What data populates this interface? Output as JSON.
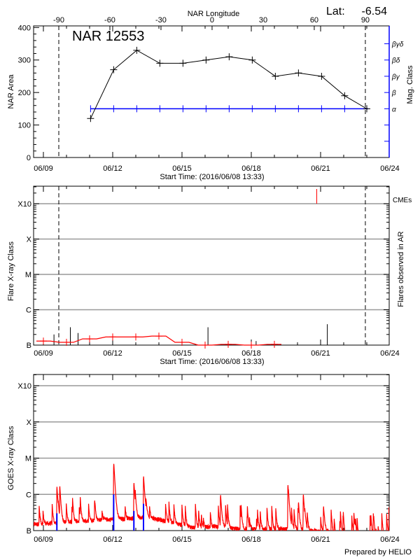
{
  "header": {
    "lat_label": "Lat:",
    "lat_value": "-6.54"
  },
  "footer": {
    "credit": "Prepared by HELIO"
  },
  "colors": {
    "area": "#000000",
    "mag_class": "#0000ff",
    "flare": "#ff0000",
    "cme": "#ff0000",
    "goes": "#ff0000",
    "goes_ar_flares": "#0000ff",
    "grid": "#999999"
  },
  "chart_data": [
    {
      "type": "line",
      "title": "NAR 12553",
      "xlabel": "Start Time: (2016/06/08 13:33)",
      "ylabel": "NAR Area",
      "y2label": "Mag. Class",
      "top_xlabel": "NAR Longitude",
      "x_ticks": [
        "06/09",
        "06/12",
        "06/15",
        "06/18",
        "06/21",
        "06/24"
      ],
      "x_tick_dates": [
        "2016-06-09 00:00",
        "2016-06-12 00:00",
        "2016-06-15 00:00",
        "2016-06-18 00:00",
        "2016-06-21 00:00",
        "2016-06-24 00:00"
      ],
      "top_ticks": [
        -90,
        -60,
        -30,
        0,
        30,
        60,
        90
      ],
      "limb_lines": [
        {
          "longitude": -90,
          "date": "2016-06-09 16:00"
        },
        {
          "longitude": 90,
          "date": "2016-06-22 22:30"
        }
      ],
      "ylim": [
        0,
        400
      ],
      "yticks": [
        0,
        100,
        200,
        300,
        400
      ],
      "mag_levels": [
        "α",
        "β",
        "βγ",
        "βδ",
        "βγδ"
      ],
      "x": [
        "2016-06-11 01:00",
        "2016-06-12 01:00",
        "2016-06-13 01:00",
        "2016-06-14 01:00",
        "2016-06-15 01:00",
        "2016-06-16 01:00",
        "2016-06-17 01:00",
        "2016-06-18 01:00",
        "2016-06-19 01:00",
        "2016-06-20 01:00",
        "2016-06-21 01:00",
        "2016-06-22 01:00",
        "2016-06-23 00:00"
      ],
      "series": [
        {
          "name": "NAR Area",
          "values": [
            120,
            270,
            330,
            290,
            290,
            300,
            310,
            300,
            250,
            260,
            250,
            190,
            150
          ]
        },
        {
          "name": "Mag. Class",
          "values": [
            "α",
            "α",
            "α",
            "α",
            "α",
            "α",
            "α",
            "α",
            "α",
            "α",
            "α",
            "α",
            "α"
          ]
        }
      ]
    },
    {
      "type": "bar",
      "xlabel": "Start Time: (2016/06/08 13:33)",
      "ylabel": "Flare X-ray Class",
      "y2label": "Flares observed in AR",
      "legend": "CMEs",
      "yscale": "log",
      "yticks": [
        "B",
        "C",
        "M",
        "X",
        "X10"
      ],
      "grid": true,
      "flares": [
        {
          "time": "2016-06-09 11:00",
          "class": "B2.0"
        },
        {
          "time": "2016-06-10 04:00",
          "class": "B3.2"
        },
        {
          "time": "2016-06-10 12:00",
          "class": "B2.2"
        },
        {
          "time": "2016-06-16 03:00",
          "class": "B3.2"
        },
        {
          "time": "2016-06-18 05:00",
          "class": "B1.3"
        },
        {
          "time": "2016-06-21 07:00",
          "class": "B3.9"
        }
      ],
      "cmes": [
        {
          "time": "2016-06-20 20:00"
        }
      ],
      "flare_level": {
        "x": [
          "2016-06-09 00:00",
          "2016-06-10 00:00",
          "2016-06-11 00:00",
          "2016-06-12 00:00",
          "2016-06-13 00:00",
          "2016-06-14 00:00",
          "2016-06-15 00:00",
          "2016-06-16 00:00",
          "2016-06-17 00:00",
          "2016-06-18 00:00",
          "2016-06-19 00:00"
        ],
        "values": [
          "B1.3",
          "B1.2",
          "B1.5",
          "B1.7",
          "B1.7",
          "B1.8",
          "B1.2",
          "B1.0",
          "B1.05",
          "B1.0",
          "B1.05"
        ]
      }
    },
    {
      "type": "line",
      "ylabel": "GOES X-ray Class",
      "yscale": "log",
      "yticks": [
        "B",
        "C",
        "M",
        "X",
        "X10"
      ],
      "grid": true,
      "background": [
        [
          "2016-06-08 13:33",
          "B1.5"
        ],
        [
          "2016-06-09 12:00",
          "B1.6"
        ],
        [
          "2016-06-10 12:00",
          "B1.8"
        ],
        [
          "2016-06-11 12:00",
          "B2.0"
        ],
        [
          "2016-06-12 12:00",
          "B2.1"
        ],
        [
          "2016-06-13 12:00",
          "B2.4"
        ],
        [
          "2016-06-14 12:00",
          "B1.7"
        ],
        [
          "2016-06-15 12:00",
          "B1.2"
        ],
        [
          "2016-06-16 12:00",
          "B1.3"
        ],
        [
          "2016-06-17 12:00",
          "B1.1"
        ],
        [
          "2016-06-18 12:00",
          "B1.1"
        ],
        [
          "2016-06-19 12:00",
          "B1.1"
        ],
        [
          "2016-06-20 12:00",
          "B1.0"
        ],
        [
          "2016-06-21 06:00",
          "A9.5"
        ],
        [
          "2016-06-22 00:00",
          "A7.0"
        ],
        [
          "2016-06-23 23:00",
          "A7.0"
        ]
      ],
      "events": [
        {
          "time": "2016-06-09 14:00",
          "class": "C1.6"
        },
        {
          "time": "2016-06-09 17:00",
          "class": "C1.2"
        },
        {
          "time": "2016-06-12 01:00",
          "class": "C6.8"
        },
        {
          "time": "2016-06-12 22:00",
          "class": "C1.9"
        },
        {
          "time": "2016-06-13 08:00",
          "class": "C3.2"
        },
        {
          "time": "2016-06-16 16:00",
          "class": "B9.0"
        },
        {
          "time": "2016-06-19 14:00",
          "class": "C1.9"
        },
        {
          "time": "2016-06-20 06:00",
          "class": "C1.0"
        },
        {
          "time": "2016-06-20 01:00",
          "class": "B4.0"
        },
        {
          "time": "2016-06-21 03:00",
          "class": "B4.0"
        },
        {
          "time": "2016-06-23 23:00",
          "class": "B4.0"
        }
      ],
      "ar_flares": [
        {
          "time": "2016-06-09 14:00",
          "class": "B3.0"
        },
        {
          "time": "2016-06-12 01:00",
          "class": "C1.0"
        },
        {
          "time": "2016-06-12 22:00",
          "class": "B3.5"
        },
        {
          "time": "2016-06-13 08:00",
          "class": "B5.5"
        }
      ]
    }
  ]
}
